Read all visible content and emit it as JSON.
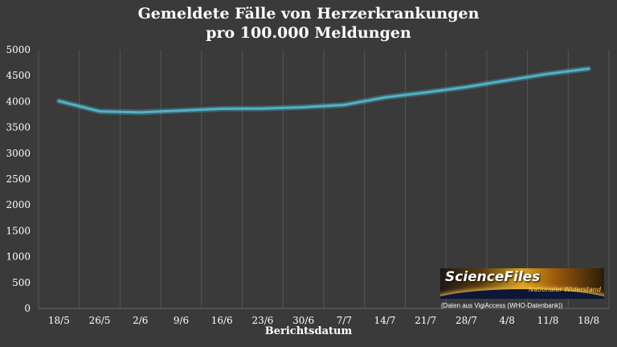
{
  "chart_data": {
    "type": "line",
    "title": "Gemeldete Fälle von Herzerkrankungen",
    "subtitle": "pro 100.000 Meldungen",
    "xlabel": "Berichtsdatum",
    "ylabel": "",
    "categories": [
      "18/5",
      "26/5",
      "2/6",
      "9/6",
      "16/6",
      "23/6",
      "30/6",
      "7/7",
      "14/7",
      "21/7",
      "28/7",
      "4/8",
      "11/8",
      "18/8"
    ],
    "series": [
      {
        "values": [
          4010,
          3810,
          3790,
          3825,
          3860,
          3865,
          3890,
          3935,
          4080,
          4175,
          4280,
          4410,
          4535,
          4635
        ]
      }
    ],
    "ylim": [
      0,
      5000
    ],
    "yticks": [
      0,
      500,
      1000,
      1500,
      2000,
      2500,
      3000,
      3500,
      4000,
      4500,
      5000
    ],
    "grid": "vertical",
    "line_color": "#4fb3c8"
  },
  "overlay": {
    "logo_text": "ScienceFiles",
    "logo_tag": "Nationaler Widerstand",
    "source_note": "(Daten aus VigiAccess (WHO-Datenbank))"
  }
}
